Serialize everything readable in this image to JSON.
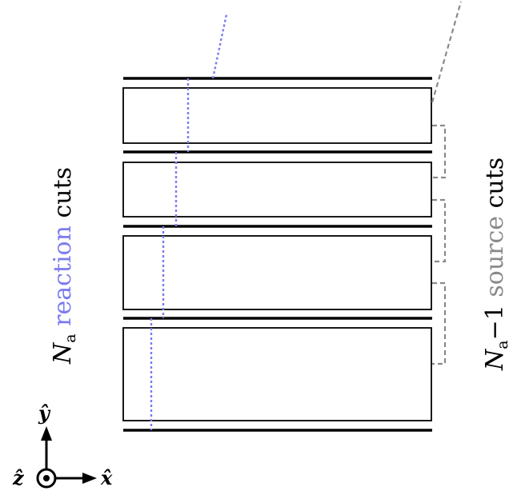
{
  "colors": {
    "outline": "#000000",
    "reaction": "#7b7bf0",
    "source": "#8a8a8a"
  },
  "left_label": {
    "symbol": "N",
    "subscript": "a",
    "colored_word": "reaction",
    "tail_word": "cuts"
  },
  "right_label": {
    "symbol": "N",
    "subscript": "a",
    "minus_one": "−1",
    "colored_word": "source",
    "tail_word": "cuts"
  },
  "axes": {
    "y": "ŷ",
    "x": "x̂",
    "z": "ẑ"
  },
  "structure": {
    "apertures": 4,
    "reaction_cuts": 4,
    "source_cuts": 3
  }
}
